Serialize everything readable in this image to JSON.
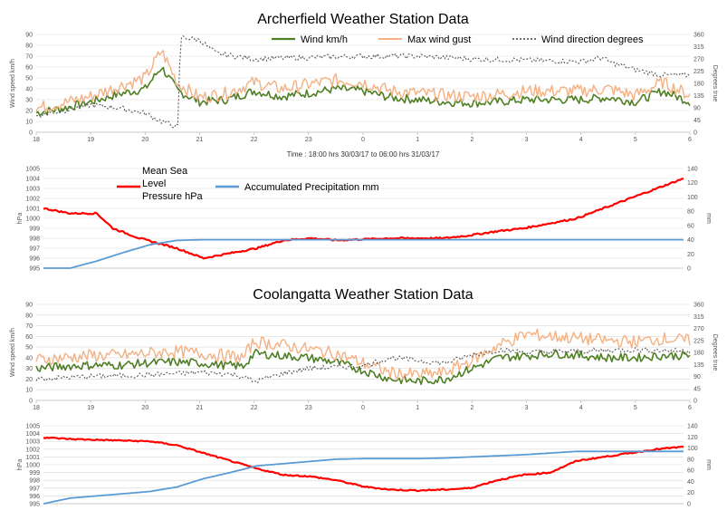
{
  "colors": {
    "wind": "#4f7f23",
    "gust": "#f4b183",
    "direction": "#595959",
    "pressure": "#ff0000",
    "precip": "#5b9bd5"
  },
  "caption": "Time : 18:00 hrs 30/03/17 to 06:00 hrs 31/03/17",
  "chart_data": [
    {
      "type": "line",
      "title": "Archerfield Weather Station Data",
      "ylabel": "Wind speed km/h",
      "y2label": "Degrees true",
      "ylim": [
        0,
        90
      ],
      "y2lim": [
        0,
        360
      ],
      "yticks": [
        "0",
        "10",
        "20",
        "30",
        "40",
        "50",
        "60",
        "70",
        "80",
        "90"
      ],
      "y2ticks": [
        "0",
        "45",
        "90",
        "135",
        "180",
        "225",
        "270",
        "315",
        "360"
      ],
      "xticks": [
        "18",
        "19",
        "20",
        "21",
        "22",
        "23",
        "0",
        "1",
        "2",
        "3",
        "4",
        "5",
        "6"
      ],
      "grid": true,
      "series": [
        {
          "name": "Wind km/h",
          "axis": "left",
          "x": [
            0,
            0.5,
            1,
            1.5,
            2,
            2.3,
            2.6,
            3,
            3.5,
            4,
            4.5,
            5,
            5.5,
            6,
            6.5,
            7,
            7.5,
            8,
            8.5,
            9,
            9.5,
            10,
            10.5,
            11,
            11.5,
            12
          ],
          "values": [
            18,
            22,
            28,
            35,
            40,
            60,
            38,
            28,
            30,
            38,
            33,
            36,
            40,
            38,
            32,
            30,
            28,
            27,
            28,
            30,
            30,
            30,
            32,
            28,
            38,
            28
          ]
        },
        {
          "name": "Max wind gust",
          "axis": "left",
          "x": [
            0,
            0.5,
            1,
            1.5,
            2,
            2.3,
            2.6,
            3,
            3.5,
            4,
            4.5,
            5,
            5.5,
            6,
            6.5,
            7,
            7.5,
            8,
            8.5,
            9,
            9.5,
            10,
            10.5,
            11,
            11.5,
            12
          ],
          "values": [
            22,
            27,
            33,
            42,
            50,
            75,
            45,
            32,
            36,
            46,
            40,
            44,
            48,
            46,
            38,
            36,
            34,
            33,
            35,
            38,
            38,
            38,
            40,
            34,
            46,
            34
          ]
        },
        {
          "name": "Wind direction degrees",
          "axis": "right",
          "x": [
            0,
            0.5,
            1,
            1.5,
            2,
            2.3,
            2.6,
            2.65,
            3,
            3.3,
            4,
            5,
            6,
            7,
            8,
            9,
            10,
            10.4,
            10.5,
            11,
            11.5,
            12
          ],
          "values": [
            60,
            80,
            100,
            90,
            70,
            40,
            20,
            350,
            340,
            290,
            270,
            275,
            280,
            280,
            270,
            265,
            260,
            275,
            260,
            230,
            210,
            210
          ]
        }
      ]
    },
    {
      "type": "line",
      "title": "",
      "ylabel": "hPa",
      "y2label": "mm",
      "ylim": [
        995,
        1005
      ],
      "y2lim": [
        0,
        140
      ],
      "yticks": [
        "995",
        "996",
        "997",
        "998",
        "999",
        "1000",
        "1001",
        "1002",
        "1003",
        "1004",
        "1005"
      ],
      "y2ticks": [
        "0",
        "20",
        "40",
        "60",
        "80",
        "100",
        "120",
        "140"
      ],
      "grid": true,
      "series": [
        {
          "name": "Mean Sea Level Pressure hPa",
          "axis": "left",
          "x": [
            0,
            0.5,
            1,
            1.3,
            1.8,
            2.5,
            3,
            3.5,
            4,
            4.5,
            5,
            5.5,
            6,
            6.5,
            7,
            7.5,
            8,
            8.5,
            9,
            9.5,
            10,
            10.5,
            11,
            11.5,
            12
          ],
          "values": [
            1001,
            1000.5,
            1000.5,
            999,
            998,
            997,
            996,
            996.5,
            997,
            997.8,
            998,
            997.8,
            997.9,
            998,
            998,
            998,
            998.3,
            998.7,
            999,
            999.5,
            1000,
            1001,
            1002,
            1003,
            1004
          ]
        },
        {
          "name": "Accumulated Precipitation mm",
          "axis": "right",
          "x": [
            0,
            0.5,
            1,
            1.5,
            2,
            2.5,
            3,
            4,
            5,
            6,
            7,
            8,
            9,
            10,
            11,
            12
          ],
          "values": [
            0,
            0,
            10,
            22,
            33,
            39,
            40,
            40,
            40,
            40,
            40,
            40,
            40,
            40,
            40,
            40
          ]
        }
      ]
    },
    {
      "type": "line",
      "title": "Coolangatta Weather Station Data",
      "ylabel": "Wind speed km/h",
      "y2label": "Degrees true",
      "ylim": [
        0,
        90
      ],
      "y2lim": [
        0,
        360
      ],
      "yticks": [
        "0",
        "10",
        "20",
        "30",
        "40",
        "50",
        "60",
        "70",
        "80",
        "90"
      ],
      "y2ticks": [
        "0",
        "45",
        "90",
        "135",
        "180",
        "225",
        "270",
        "315",
        "360"
      ],
      "xticks": [
        "18",
        "19",
        "20",
        "21",
        "22",
        "23",
        "0",
        "1",
        "2",
        "3",
        "4",
        "5",
        "6"
      ],
      "grid": true,
      "series": [
        {
          "name": "Wind km/h",
          "axis": "left",
          "x": [
            0,
            0.5,
            1,
            1.5,
            2,
            2.5,
            3,
            3.5,
            3.8,
            4,
            4.5,
            5,
            5.5,
            6,
            6.5,
            7,
            7.5,
            8,
            8.5,
            9,
            9.5,
            10,
            10.5,
            11,
            11.5,
            12
          ],
          "values": [
            30,
            32,
            33,
            33,
            35,
            36,
            35,
            33,
            32,
            44,
            42,
            40,
            36,
            28,
            20,
            18,
            20,
            30,
            40,
            42,
            44,
            42,
            40,
            40,
            42,
            42
          ]
        },
        {
          "name": "Max wind gust",
          "axis": "left",
          "x": [
            0,
            0.5,
            1,
            1.5,
            2,
            2.5,
            3,
            3.5,
            3.8,
            4,
            4.5,
            5,
            5.5,
            6,
            6.5,
            7,
            7.5,
            8,
            8.5,
            9,
            9.5,
            10,
            10.5,
            11,
            11.5,
            12
          ],
          "values": [
            38,
            40,
            42,
            42,
            44,
            46,
            44,
            42,
            40,
            55,
            52,
            48,
            44,
            35,
            26,
            24,
            26,
            38,
            52,
            62,
            60,
            58,
            56,
            55,
            58,
            56
          ]
        },
        {
          "name": "Wind direction degrees",
          "axis": "right",
          "x": [
            0,
            1,
            2,
            2.5,
            3,
            3.5,
            3.8,
            4,
            4.5,
            5,
            6,
            6.5,
            7,
            7.5,
            8,
            8.5,
            9,
            10,
            11,
            12
          ],
          "values": [
            80,
            90,
            95,
            100,
            105,
            100,
            90,
            70,
            100,
            120,
            130,
            160,
            150,
            140,
            170,
            190,
            180,
            185,
            190,
            185
          ]
        }
      ]
    },
    {
      "type": "line",
      "title": "",
      "ylabel": "hPa",
      "y2label": "mm",
      "ylim": [
        995,
        1005
      ],
      "y2lim": [
        0,
        140
      ],
      "yticks": [
        "995",
        "996",
        "997",
        "998",
        "999",
        "1000",
        "1001",
        "1002",
        "1003",
        "1004",
        "1005"
      ],
      "y2ticks": [
        "0",
        "20",
        "40",
        "60",
        "80",
        "100",
        "120",
        "140"
      ],
      "grid": true,
      "series": [
        {
          "name": "Mean Sea Level Pressure hPa",
          "axis": "left",
          "x": [
            0,
            0.5,
            1,
            1.5,
            2,
            2.5,
            3,
            3.5,
            4,
            4.5,
            5,
            5.5,
            6,
            6.5,
            7,
            7.5,
            8,
            8.5,
            9,
            9.5,
            10,
            10.5,
            11,
            11.5,
            12
          ],
          "values": [
            1003.5,
            1003.3,
            1003.2,
            1003.1,
            1003,
            1002.5,
            1001.5,
            1000.5,
            999.5,
            998.7,
            998.5,
            998,
            997.2,
            996.8,
            996.7,
            996.8,
            997,
            998,
            998.7,
            999,
            1000.5,
            1001,
            1001.5,
            1002,
            1002.3
          ]
        },
        {
          "name": "Accumulated Precipitation mm",
          "axis": "right",
          "x": [
            0,
            0.5,
            1,
            1.5,
            2,
            2.5,
            3,
            3.5,
            4,
            4.5,
            5,
            5.5,
            6,
            6.5,
            7,
            7.5,
            8,
            8.5,
            9,
            9.5,
            10,
            10.5,
            11,
            11.5,
            12
          ],
          "values": [
            0,
            10,
            14,
            18,
            22,
            30,
            45,
            56,
            68,
            72,
            76,
            80,
            81,
            81,
            81,
            82,
            84,
            86,
            88,
            91,
            94,
            94,
            94,
            94,
            94
          ]
        }
      ]
    }
  ]
}
